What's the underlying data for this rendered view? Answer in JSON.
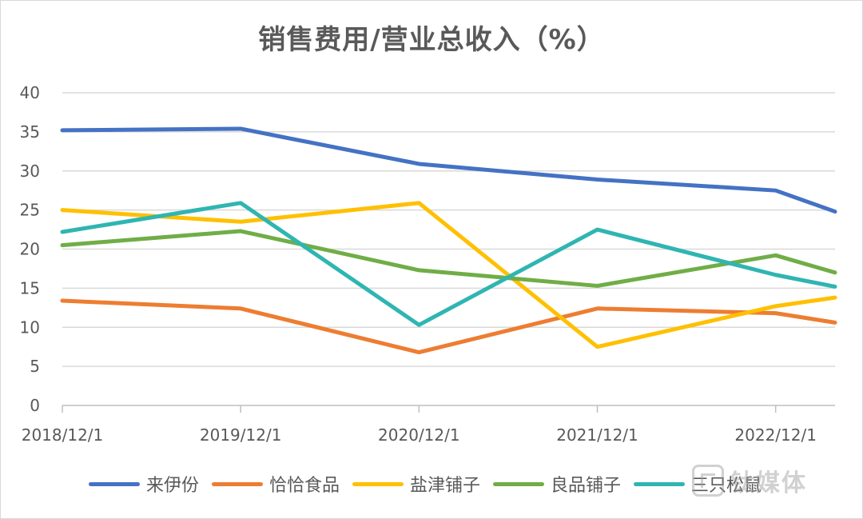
{
  "chart_data": {
    "type": "line",
    "title": "销售费用/营业总收入（%）",
    "categories": [
      "2018/12/1",
      "2019/12/1",
      "2020/12/1",
      "2021/12/1",
      "2022/12/1"
    ],
    "x": [
      2018.917,
      2019.917,
      2020.917,
      2021.917,
      2022.917,
      2023.25
    ],
    "ylim": [
      0,
      40
    ],
    "yticks": [
      0,
      5,
      10,
      15,
      20,
      25,
      30,
      35,
      40
    ],
    "grid": true,
    "legend_position": "bottom",
    "xlabel": "",
    "ylabel": "",
    "series": [
      {
        "name": "来伊份",
        "color": "#4472C4",
        "values": [
          35.2,
          35.4,
          30.9,
          28.9,
          27.5,
          24.8
        ]
      },
      {
        "name": "恰恰食品",
        "color": "#ED7D31",
        "values": [
          13.4,
          12.4,
          6.8,
          12.4,
          11.8,
          10.6
        ]
      },
      {
        "name": "盐津铺子",
        "color": "#FFC000",
        "values": [
          25.0,
          23.5,
          25.9,
          7.5,
          12.7,
          13.8
        ]
      },
      {
        "name": "良品铺子",
        "color": "#70AD47",
        "values": [
          20.5,
          22.3,
          17.3,
          15.3,
          19.2,
          17.0
        ]
      },
      {
        "name": "三只松鼠",
        "color": "#2FB5B2",
        "values": [
          22.2,
          25.9,
          10.3,
          22.5,
          16.7,
          15.2
        ]
      }
    ]
  },
  "watermark": {
    "text": "钛媒体",
    "icon": "tmt-logo-icon"
  }
}
